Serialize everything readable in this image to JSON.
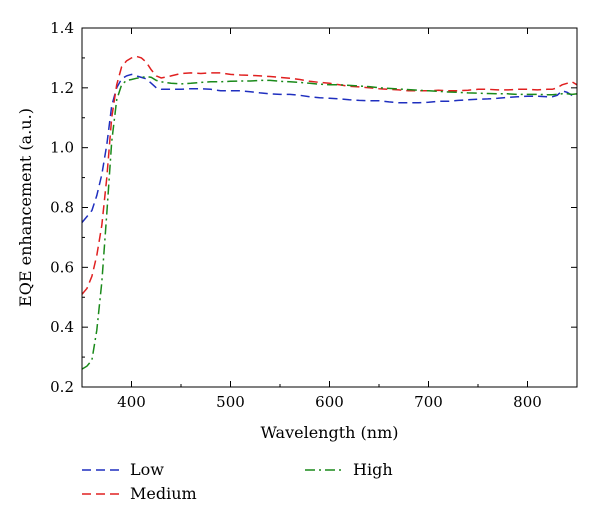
{
  "chart_data": {
    "type": "line",
    "xlabel": "Wavelength (nm)",
    "ylabel": "EQE enhancement (a.u.)",
    "xlim": [
      350,
      850
    ],
    "ylim": [
      0.2,
      1.4
    ],
    "xticks": [
      400,
      500,
      600,
      700,
      800
    ],
    "yticks": [
      0.2,
      0.4,
      0.6,
      0.8,
      1.0,
      1.2,
      1.4
    ],
    "xtick_labels": [
      "400",
      "500",
      "600",
      "700",
      "800"
    ],
    "ytick_labels": [
      "0.2",
      "0.4",
      "0.6",
      "0.8",
      "1.0",
      "1.2",
      "1.4"
    ],
    "grid": false,
    "legend_position": "below-left",
    "series": [
      {
        "name": "Low",
        "color": "#1f2fbf",
        "dash": "dashed",
        "points": [
          [
            350,
            0.75
          ],
          [
            355,
            0.77
          ],
          [
            360,
            0.79
          ],
          [
            365,
            0.84
          ],
          [
            370,
            0.91
          ],
          [
            375,
            1.01
          ],
          [
            380,
            1.14
          ],
          [
            385,
            1.2
          ],
          [
            390,
            1.23
          ],
          [
            395,
            1.24
          ],
          [
            400,
            1.245
          ],
          [
            405,
            1.24
          ],
          [
            410,
            1.235
          ],
          [
            415,
            1.23
          ],
          [
            420,
            1.215
          ],
          [
            425,
            1.2
          ],
          [
            430,
            1.195
          ],
          [
            440,
            1.195
          ],
          [
            450,
            1.195
          ],
          [
            460,
            1.197
          ],
          [
            470,
            1.197
          ],
          [
            480,
            1.195
          ],
          [
            490,
            1.19
          ],
          [
            500,
            1.19
          ],
          [
            510,
            1.19
          ],
          [
            520,
            1.187
          ],
          [
            530,
            1.183
          ],
          [
            540,
            1.18
          ],
          [
            550,
            1.178
          ],
          [
            560,
            1.178
          ],
          [
            570,
            1.175
          ],
          [
            580,
            1.17
          ],
          [
            590,
            1.167
          ],
          [
            600,
            1.165
          ],
          [
            610,
            1.163
          ],
          [
            620,
            1.16
          ],
          [
            630,
            1.158
          ],
          [
            640,
            1.157
          ],
          [
            650,
            1.157
          ],
          [
            660,
            1.153
          ],
          [
            670,
            1.15
          ],
          [
            680,
            1.15
          ],
          [
            690,
            1.15
          ],
          [
            700,
            1.152
          ],
          [
            710,
            1.155
          ],
          [
            720,
            1.155
          ],
          [
            730,
            1.158
          ],
          [
            740,
            1.16
          ],
          [
            750,
            1.162
          ],
          [
            760,
            1.163
          ],
          [
            770,
            1.165
          ],
          [
            780,
            1.168
          ],
          [
            790,
            1.17
          ],
          [
            800,
            1.172
          ],
          [
            810,
            1.172
          ],
          [
            820,
            1.17
          ],
          [
            825,
            1.17
          ],
          [
            830,
            1.175
          ],
          [
            835,
            1.19
          ],
          [
            840,
            1.185
          ],
          [
            845,
            1.175
          ],
          [
            850,
            1.18
          ]
        ]
      },
      {
        "name": "Medium",
        "color": "#e02020",
        "dash": "dashed",
        "points": [
          [
            350,
            0.51
          ],
          [
            355,
            0.53
          ],
          [
            360,
            0.57
          ],
          [
            365,
            0.64
          ],
          [
            370,
            0.74
          ],
          [
            375,
            0.9
          ],
          [
            380,
            1.1
          ],
          [
            385,
            1.21
          ],
          [
            390,
            1.27
          ],
          [
            395,
            1.29
          ],
          [
            400,
            1.3
          ],
          [
            405,
            1.305
          ],
          [
            410,
            1.3
          ],
          [
            415,
            1.285
          ],
          [
            420,
            1.26
          ],
          [
            425,
            1.24
          ],
          [
            430,
            1.233
          ],
          [
            440,
            1.24
          ],
          [
            450,
            1.248
          ],
          [
            460,
            1.25
          ],
          [
            470,
            1.248
          ],
          [
            480,
            1.25
          ],
          [
            490,
            1.25
          ],
          [
            500,
            1.245
          ],
          [
            510,
            1.243
          ],
          [
            520,
            1.242
          ],
          [
            530,
            1.24
          ],
          [
            540,
            1.238
          ],
          [
            550,
            1.235
          ],
          [
            560,
            1.232
          ],
          [
            570,
            1.228
          ],
          [
            580,
            1.222
          ],
          [
            590,
            1.218
          ],
          [
            600,
            1.215
          ],
          [
            610,
            1.21
          ],
          [
            620,
            1.205
          ],
          [
            630,
            1.203
          ],
          [
            640,
            1.2
          ],
          [
            650,
            1.197
          ],
          [
            660,
            1.195
          ],
          [
            670,
            1.193
          ],
          [
            680,
            1.19
          ],
          [
            690,
            1.19
          ],
          [
            700,
            1.19
          ],
          [
            710,
            1.192
          ],
          [
            720,
            1.19
          ],
          [
            730,
            1.19
          ],
          [
            740,
            1.192
          ],
          [
            750,
            1.195
          ],
          [
            760,
            1.195
          ],
          [
            770,
            1.193
          ],
          [
            780,
            1.193
          ],
          [
            790,
            1.195
          ],
          [
            800,
            1.195
          ],
          [
            810,
            1.193
          ],
          [
            820,
            1.195
          ],
          [
            825,
            1.195
          ],
          [
            830,
            1.2
          ],
          [
            835,
            1.21
          ],
          [
            840,
            1.215
          ],
          [
            845,
            1.22
          ],
          [
            850,
            1.21
          ]
        ]
      },
      {
        "name": "High",
        "color": "#1a8a1a",
        "dash": "dashdot",
        "points": [
          [
            350,
            0.26
          ],
          [
            355,
            0.27
          ],
          [
            360,
            0.29
          ],
          [
            365,
            0.39
          ],
          [
            370,
            0.55
          ],
          [
            375,
            0.78
          ],
          [
            380,
            1.02
          ],
          [
            385,
            1.16
          ],
          [
            390,
            1.21
          ],
          [
            395,
            1.225
          ],
          [
            400,
            1.228
          ],
          [
            405,
            1.232
          ],
          [
            410,
            1.235
          ],
          [
            415,
            1.238
          ],
          [
            420,
            1.235
          ],
          [
            425,
            1.225
          ],
          [
            430,
            1.22
          ],
          [
            440,
            1.215
          ],
          [
            450,
            1.213
          ],
          [
            460,
            1.215
          ],
          [
            470,
            1.218
          ],
          [
            480,
            1.22
          ],
          [
            490,
            1.22
          ],
          [
            500,
            1.222
          ],
          [
            510,
            1.223
          ],
          [
            520,
            1.223
          ],
          [
            530,
            1.225
          ],
          [
            540,
            1.225
          ],
          [
            550,
            1.222
          ],
          [
            560,
            1.22
          ],
          [
            570,
            1.218
          ],
          [
            580,
            1.215
          ],
          [
            590,
            1.212
          ],
          [
            600,
            1.21
          ],
          [
            610,
            1.21
          ],
          [
            620,
            1.208
          ],
          [
            630,
            1.206
          ],
          [
            640,
            1.204
          ],
          [
            650,
            1.2
          ],
          [
            660,
            1.198
          ],
          [
            670,
            1.196
          ],
          [
            680,
            1.194
          ],
          [
            690,
            1.192
          ],
          [
            700,
            1.19
          ],
          [
            710,
            1.188
          ],
          [
            720,
            1.186
          ],
          [
            730,
            1.185
          ],
          [
            740,
            1.183
          ],
          [
            750,
            1.182
          ],
          [
            760,
            1.181
          ],
          [
            770,
            1.18
          ],
          [
            780,
            1.18
          ],
          [
            790,
            1.178
          ],
          [
            800,
            1.178
          ],
          [
            810,
            1.178
          ],
          [
            820,
            1.177
          ],
          [
            825,
            1.177
          ],
          [
            830,
            1.178
          ],
          [
            835,
            1.18
          ],
          [
            840,
            1.18
          ],
          [
            845,
            1.178
          ],
          [
            850,
            1.18
          ]
        ]
      }
    ]
  }
}
